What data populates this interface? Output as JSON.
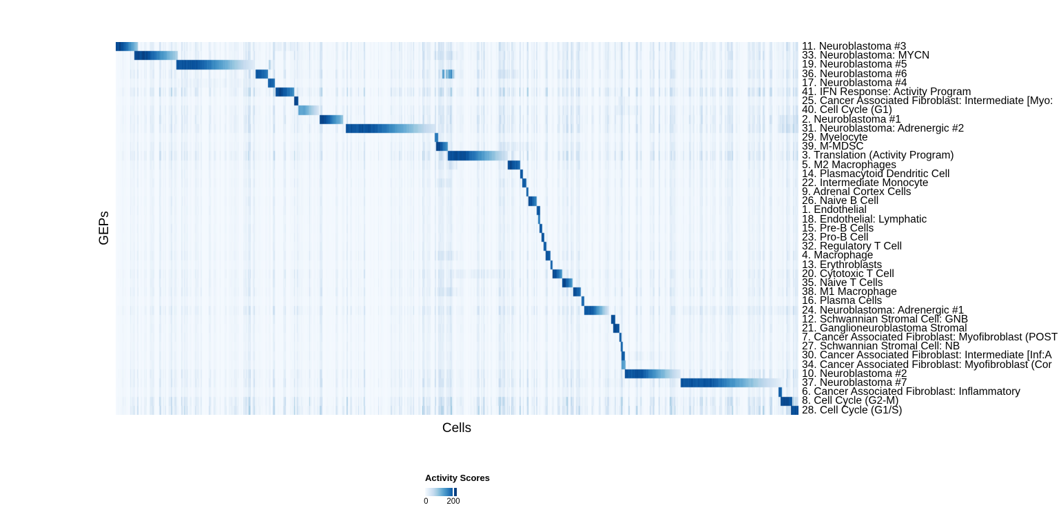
{
  "chart_data": {
    "type": "heatmap",
    "title": "",
    "xlabel": "Cells",
    "ylabel": "GEPs",
    "x_axis": {
      "tick_labels": [],
      "note": "individual cells, no ticks shown"
    },
    "legend": {
      "title": "Activity Scores",
      "tick_labels": [
        "0",
        "200"
      ],
      "tick_values": [
        0,
        200
      ],
      "tick_200_position_frac": 0.87,
      "color_low": "#F7FBFF",
      "color_high": "#08306B",
      "colormap_stops": [
        [
          0.0,
          247,
          251,
          255
        ],
        [
          0.13,
          222,
          235,
          247
        ],
        [
          0.26,
          198,
          219,
          239
        ],
        [
          0.39,
          158,
          202,
          225
        ],
        [
          0.52,
          107,
          174,
          214
        ],
        [
          0.65,
          66,
          146,
          198
        ],
        [
          0.78,
          33,
          113,
          181
        ],
        [
          0.9,
          8,
          81,
          156
        ],
        [
          1.0,
          8,
          48,
          107
        ]
      ]
    },
    "row_count": 41,
    "rows": [
      {
        "label": "11. Neuroblastoma #3",
        "block": [
          0.0,
          0.032,
          245,
          100
        ],
        "noise": 0.3,
        "extras": [
          [
            0.23,
            0.26,
            70
          ]
        ]
      },
      {
        "label": "33. Neuroblastoma: MYCN",
        "block": [
          0.027,
          0.09,
          245,
          90
        ],
        "noise": 0.3,
        "extras": [
          [
            0.465,
            0.5,
            70
          ]
        ]
      },
      {
        "label": "19. Neuroblastoma #5",
        "block": [
          0.088,
          0.201,
          235,
          35
        ],
        "noise": 0.22,
        "extras": [
          [
            0.222,
            0.23,
            190
          ]
        ]
      },
      {
        "label": "36. Neuroblastoma #6",
        "block": [
          0.204,
          0.222,
          235,
          200
        ],
        "noise": 0.32,
        "extras": [
          [
            0.478,
            0.497,
            210
          ],
          [
            0.56,
            0.59,
            70
          ]
        ]
      },
      {
        "label": "17. Neuroblastoma #4",
        "block": [
          0.222,
          0.233,
          225,
          200
        ],
        "noise": 0.15,
        "extras": [
          [
            0.09,
            0.2,
            45
          ]
        ]
      },
      {
        "label": "41. IFN Response: Activity Program",
        "block": [
          0.234,
          0.261,
          245,
          170
        ],
        "noise": 0.45,
        "extras": []
      },
      {
        "label": "25. Cancer Associated Fibroblast: Intermediate [Myo:",
        "block": [
          0.261,
          0.267,
          250,
          240
        ],
        "noise": 0.12,
        "extras": [
          [
            0.735,
            0.75,
            60
          ]
        ]
      },
      {
        "label": "40. Cell Cycle (G1)",
        "block": [
          0.267,
          0.297,
          150,
          45
        ],
        "noise": 0.28,
        "extras": [
          [
            0.73,
            0.76,
            60
          ]
        ]
      },
      {
        "label": "2. Neuroblastoma #1",
        "block": [
          0.298,
          0.332,
          245,
          110
        ],
        "noise": 0.32,
        "extras": [
          [
            0.97,
            1.0,
            80
          ]
        ]
      },
      {
        "label": "31. Neuroblastoma: Adrenergic #2",
        "block": [
          0.337,
          0.469,
          235,
          40
        ],
        "noise": 0.32,
        "extras": [
          [
            0.97,
            1.0,
            90
          ]
        ]
      },
      {
        "label": "29. Myelocyte",
        "block": [
          0.467,
          0.472,
          200,
          190
        ],
        "noise": 0.12,
        "extras": []
      },
      {
        "label": "39. M-MDSC",
        "block": [
          0.469,
          0.486,
          245,
          160
        ],
        "noise": 0.22,
        "extras": [
          [
            0.56,
            0.61,
            60
          ]
        ]
      },
      {
        "label": "3. Translation (Activity Program)",
        "block": [
          0.486,
          0.574,
          240,
          45
        ],
        "noise": 0.38,
        "extras": []
      },
      {
        "label": "5. M2 Macrophages",
        "block": [
          0.574,
          0.592,
          245,
          210
        ],
        "noise": 0.18,
        "extras": [
          [
            0.487,
            0.5,
            80
          ]
        ]
      },
      {
        "label": "14. Plasmacytoid Dendritic Cell",
        "block": [
          0.592,
          0.596,
          230,
          220
        ],
        "noise": 0.12,
        "extras": []
      },
      {
        "label": "22. Intermediate Monocyte",
        "block": [
          0.595,
          0.601,
          235,
          215
        ],
        "noise": 0.16,
        "extras": [
          [
            0.47,
            0.49,
            60
          ]
        ]
      },
      {
        "label": "9. Adrenal Cortex Cells",
        "block": [
          0.601,
          0.604,
          220,
          210
        ],
        "noise": 0.1,
        "extras": []
      },
      {
        "label": "26. Naive B Cell",
        "block": [
          0.604,
          0.616,
          242,
          180
        ],
        "noise": 0.14,
        "extras": []
      },
      {
        "label": "1. Endothelial",
        "block": [
          0.616,
          0.621,
          235,
          225
        ],
        "noise": 0.12,
        "extras": []
      },
      {
        "label": "18. Endothelial: Lymphatic",
        "block": [
          0.618,
          0.621,
          200,
          195
        ],
        "noise": 0.1,
        "extras": []
      },
      {
        "label": "15. Pre-B Cells",
        "block": [
          0.62,
          0.624,
          230,
          220
        ],
        "noise": 0.12,
        "extras": []
      },
      {
        "label": "23. Pro-B Cell",
        "block": [
          0.623,
          0.627,
          235,
          225
        ],
        "noise": 0.1,
        "extras": []
      },
      {
        "label": "32. Regulatory T Cell",
        "block": [
          0.626,
          0.63,
          230,
          220
        ],
        "noise": 0.12,
        "extras": []
      },
      {
        "label": "4. Macrophage",
        "block": [
          0.629,
          0.636,
          240,
          215
        ],
        "noise": 0.18,
        "extras": [
          [
            0.47,
            0.5,
            60
          ]
        ]
      },
      {
        "label": "13. Erythroblasts",
        "block": [
          0.636,
          0.639,
          225,
          215
        ],
        "noise": 0.1,
        "extras": []
      },
      {
        "label": "20. Cytotoxic T Cell",
        "block": [
          0.639,
          0.653,
          245,
          160
        ],
        "noise": 0.22,
        "extras": [
          [
            0.49,
            0.56,
            55
          ]
        ]
      },
      {
        "label": "35. Naive T Cells",
        "block": [
          0.653,
          0.669,
          245,
          150
        ],
        "noise": 0.18,
        "extras": []
      },
      {
        "label": "38. M1 Macrophage",
        "block": [
          0.67,
          0.681,
          240,
          200
        ],
        "noise": 0.22,
        "extras": [
          [
            0.47,
            0.5,
            70
          ]
        ]
      },
      {
        "label": "16. Plasma Cells",
        "block": [
          0.682,
          0.686,
          220,
          210
        ],
        "noise": 0.1,
        "extras": []
      },
      {
        "label": "24. Neuroblastoma: Adrenergic #1",
        "block": [
          0.686,
          0.722,
          232,
          45
        ],
        "noise": 0.28,
        "extras": [
          [
            0.83,
            1.0,
            40
          ]
        ]
      },
      {
        "label": "12. Schwannian Stromal Cell: GNB",
        "block": [
          0.725,
          0.731,
          245,
          230
        ],
        "noise": 0.14,
        "extras": []
      },
      {
        "label": "21. Ganglioneuroblastoma Stromal",
        "block": [
          0.728,
          0.737,
          245,
          230
        ],
        "noise": 0.14,
        "extras": []
      },
      {
        "label": "7. Cancer Associated Fibroblast: Myofibroblast (POST",
        "block": [
          0.737,
          0.74,
          230,
          220
        ],
        "noise": 0.12,
        "extras": []
      },
      {
        "label": "27. Schwannian Stromal Cell: NB",
        "block": [
          0.739,
          0.742,
          225,
          215
        ],
        "noise": 0.1,
        "extras": []
      },
      {
        "label": "30. Cancer Associated Fibroblast: Intermediate [Inf:A",
        "block": [
          0.74,
          0.745,
          230,
          215
        ],
        "noise": 0.14,
        "extras": [
          [
            0.75,
            0.8,
            45
          ]
        ]
      },
      {
        "label": "34. Cancer Associated Fibroblast: Myofibroblast (Cor",
        "block": [
          0.74,
          0.746,
          165,
          140
        ],
        "noise": 0.12,
        "extras": []
      },
      {
        "label": "10. Neuroblastoma #2",
        "block": [
          0.745,
          0.827,
          235,
          35
        ],
        "noise": 0.28,
        "extras": []
      },
      {
        "label": "37. Neuroblastoma #7",
        "block": [
          0.827,
          0.974,
          235,
          25
        ],
        "noise": 0.28,
        "extras": [
          [
            0.66,
            0.825,
            35
          ]
        ]
      },
      {
        "label": "6. Cancer Associated Fibroblast: Inflammatory",
        "block": [
          0.97,
          0.975,
          230,
          220
        ],
        "noise": 0.14,
        "extras": []
      },
      {
        "label": "8. Cell Cycle (G2-M)",
        "block": [
          0.973,
          0.99,
          245,
          235
        ],
        "noise": 0.45,
        "extras": []
      },
      {
        "label": "28. Cell Cycle (G1/S)",
        "block": [
          0.988,
          1.0,
          245,
          235
        ],
        "noise": 0.5,
        "extras": []
      }
    ]
  }
}
